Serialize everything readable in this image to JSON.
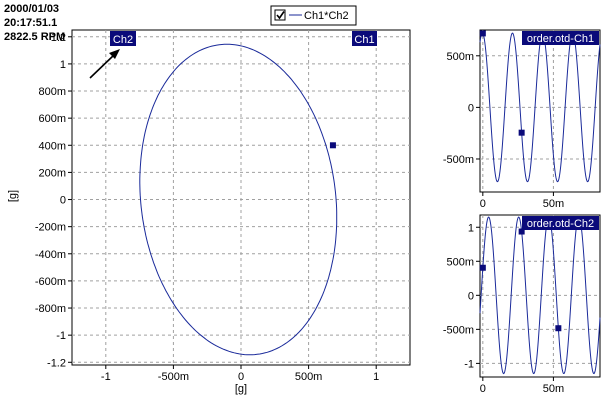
{
  "info": {
    "date": "2000/01/03",
    "time": "20:17:51.1",
    "rpm": "2822.5 RPM"
  },
  "legend": {
    "label": "Ch1*Ch2",
    "checked": true
  },
  "colors": {
    "trace": "#1a2a9a",
    "tag_bg": "#0a0a7a",
    "tag_text": "#ffffff",
    "grid": "#a0a0a0"
  },
  "main_plot": {
    "x_tag": "Ch1",
    "y_tag": "Ch2",
    "xlabel": "[g]",
    "ylabel": "[g]",
    "xticks": [
      "-1",
      "-500m",
      "0",
      "500m",
      "1"
    ],
    "yticks": [
      "1.2",
      "1",
      "800m",
      "600m",
      "400m",
      "200m",
      "0",
      "-200m",
      "-400m",
      "-600m",
      "-800m",
      "-1",
      "-1.2"
    ]
  },
  "plot_ch1": {
    "tag": "order.otd-Ch1",
    "yticks": [
      "500m",
      "0",
      "-500m"
    ],
    "xticks": [
      "0",
      "50m"
    ]
  },
  "plot_ch2": {
    "tag": "order.otd-Ch2",
    "yticks": [
      "1",
      "500m",
      "0",
      "-500m",
      "-1"
    ],
    "xticks": [
      "0",
      "50m"
    ]
  },
  "chart_data": [
    {
      "type": "line",
      "title": "Ch1*Ch2",
      "xlabel": "[g]",
      "ylabel": "[g]",
      "xlim": [
        -1.25,
        1.25
      ],
      "ylim": [
        -1.22,
        1.25
      ],
      "grid": true,
      "legend": "top-center",
      "series": [
        {
          "name": "Ch1*Ch2",
          "shape": "ellipse",
          "center": [
            -0.02,
            0.0
          ],
          "semi_axis_major": 1.15,
          "semi_axis_minor": 0.72,
          "tilt_deg": 7,
          "marker": {
            "x": 0.68,
            "y": 0.4
          }
        }
      ]
    },
    {
      "type": "line",
      "title": "order.otd-Ch1",
      "xlim": [
        -0.002,
        0.083
      ],
      "ylim": [
        -0.82,
        0.75
      ],
      "grid": true,
      "series": [
        {
          "name": "order.otd-Ch1",
          "waveform": "sine",
          "amplitude": 0.72,
          "period": 0.0213,
          "phase_rad": 1.66,
          "markers_x": [
            0.0,
            0.0275
          ]
        }
      ]
    },
    {
      "type": "line",
      "title": "order.otd-Ch2",
      "xlim": [
        -0.002,
        0.083
      ],
      "ylim": [
        -1.2,
        1.18
      ],
      "grid": true,
      "series": [
        {
          "name": "order.otd-Ch2",
          "waveform": "sine",
          "amplitude": 1.15,
          "period": 0.0213,
          "phase_rad": 0.36,
          "markers_x": [
            0.0,
            0.0275,
            0.0535
          ]
        }
      ]
    }
  ]
}
